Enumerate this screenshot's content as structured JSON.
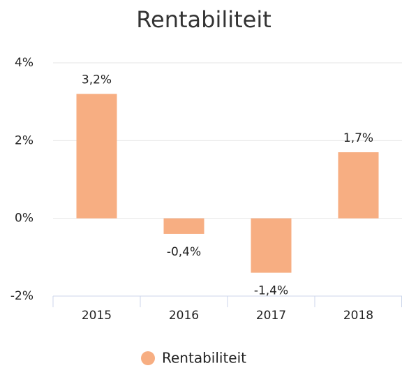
{
  "chart_data": {
    "type": "bar",
    "title": "Rentabiliteit",
    "categories": [
      "2015",
      "2016",
      "2017",
      "2018"
    ],
    "series": [
      {
        "name": "Rentabiliteit",
        "color": "#f7ae82",
        "values": [
          3.2,
          -0.4,
          -1.4,
          1.7
        ],
        "value_labels": [
          "3,2%",
          "-0,4%",
          "-1,4%",
          "1,7%"
        ]
      }
    ],
    "ylim": [
      -2,
      4
    ],
    "yticks": [
      {
        "value": -2,
        "label": "-2%"
      },
      {
        "value": 0,
        "label": "0%"
      },
      {
        "value": 2,
        "label": "2%"
      },
      {
        "value": 4,
        "label": "4%"
      }
    ],
    "grid": true,
    "legend": "bottom"
  }
}
